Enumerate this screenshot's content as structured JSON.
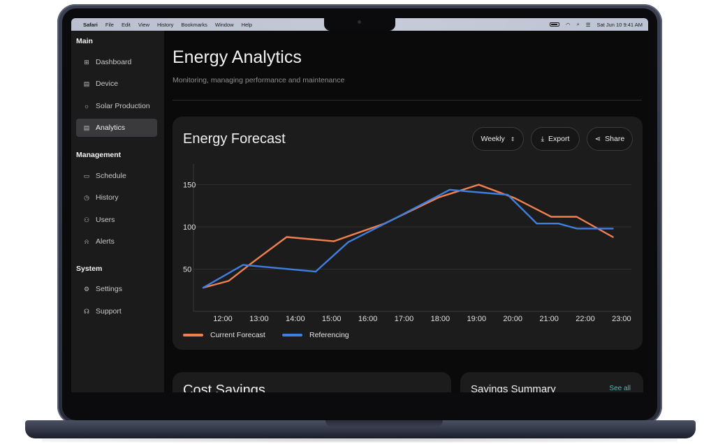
{
  "menubar": {
    "app": "Safari",
    "items": [
      "File",
      "Edit",
      "View",
      "History",
      "Bookmarks",
      "Window",
      "Help"
    ],
    "datetime": "Sat Jun 10  9:41 AM"
  },
  "sidebar": {
    "sections": [
      {
        "title": "Main",
        "items": [
          {
            "label": "Dashboard",
            "icon": "dashboard-icon",
            "glyph": "⊞"
          },
          {
            "label": "Device",
            "icon": "device-icon",
            "glyph": "▤"
          },
          {
            "label": "Solar Production",
            "icon": "sun-icon",
            "glyph": "☼"
          },
          {
            "label": "Analytics",
            "icon": "analytics-icon",
            "glyph": "▤",
            "active": true
          }
        ]
      },
      {
        "title": "Management",
        "items": [
          {
            "label": "Schedule",
            "icon": "calendar-icon",
            "glyph": "▭"
          },
          {
            "label": "History",
            "icon": "clock-icon",
            "glyph": "◷"
          },
          {
            "label": "Users",
            "icon": "users-icon",
            "glyph": "⚇"
          },
          {
            "label": "Alerts",
            "icon": "bell-icon",
            "glyph": "⍾"
          }
        ]
      },
      {
        "title": "System",
        "items": [
          {
            "label": "Settings",
            "icon": "gear-icon",
            "glyph": "⚙"
          },
          {
            "label": "Support",
            "icon": "headset-icon",
            "glyph": "☊"
          }
        ]
      }
    ]
  },
  "main": {
    "title": "Energy Analytics",
    "subtitle": "Monitoring, managing performance and maintenance"
  },
  "forecast_card": {
    "title": "Energy Forecast",
    "period_select": "Weekly",
    "export_label": "Export",
    "share_label": "Share"
  },
  "cost_card": {
    "title": "Cost Savings"
  },
  "summary_card": {
    "title": "Savings Summary",
    "link": "See all"
  },
  "colors": {
    "current": "#f0814f",
    "referencing": "#3f7fe0",
    "accent_link": "#4fb6b0"
  },
  "chart_data": {
    "type": "line",
    "x": [
      "12:00",
      "13:00",
      "14:00",
      "15:00",
      "16:00",
      "17:00",
      "18:00",
      "19:00",
      "20:00",
      "21:00",
      "22:00",
      "23:00"
    ],
    "yticks": [
      50,
      100,
      150
    ],
    "ylim": [
      0,
      175
    ],
    "grid": true,
    "legend_position": "bottom-left",
    "series": [
      {
        "name": "Current Forecast",
        "color": "#f0814f",
        "points": [
          [
            0,
            28
          ],
          [
            0.7,
            36
          ],
          [
            1.3,
            56
          ],
          [
            2.3,
            88
          ],
          [
            3.6,
            83
          ],
          [
            5,
            104
          ],
          [
            6.5,
            135
          ],
          [
            7.6,
            150
          ],
          [
            8.6,
            134
          ],
          [
            9.6,
            112
          ],
          [
            10.3,
            112
          ],
          [
            11.3,
            88
          ]
        ]
      },
      {
        "name": "Referencing",
        "color": "#3f7fe0",
        "points": [
          [
            0,
            28
          ],
          [
            1.1,
            55
          ],
          [
            3.1,
            47
          ],
          [
            4,
            82
          ],
          [
            5.2,
            108
          ],
          [
            6.8,
            144
          ],
          [
            7.3,
            142
          ],
          [
            8.4,
            138
          ],
          [
            9.2,
            104
          ],
          [
            9.8,
            104
          ],
          [
            10.3,
            98
          ],
          [
            11.3,
            98
          ]
        ]
      }
    ]
  }
}
